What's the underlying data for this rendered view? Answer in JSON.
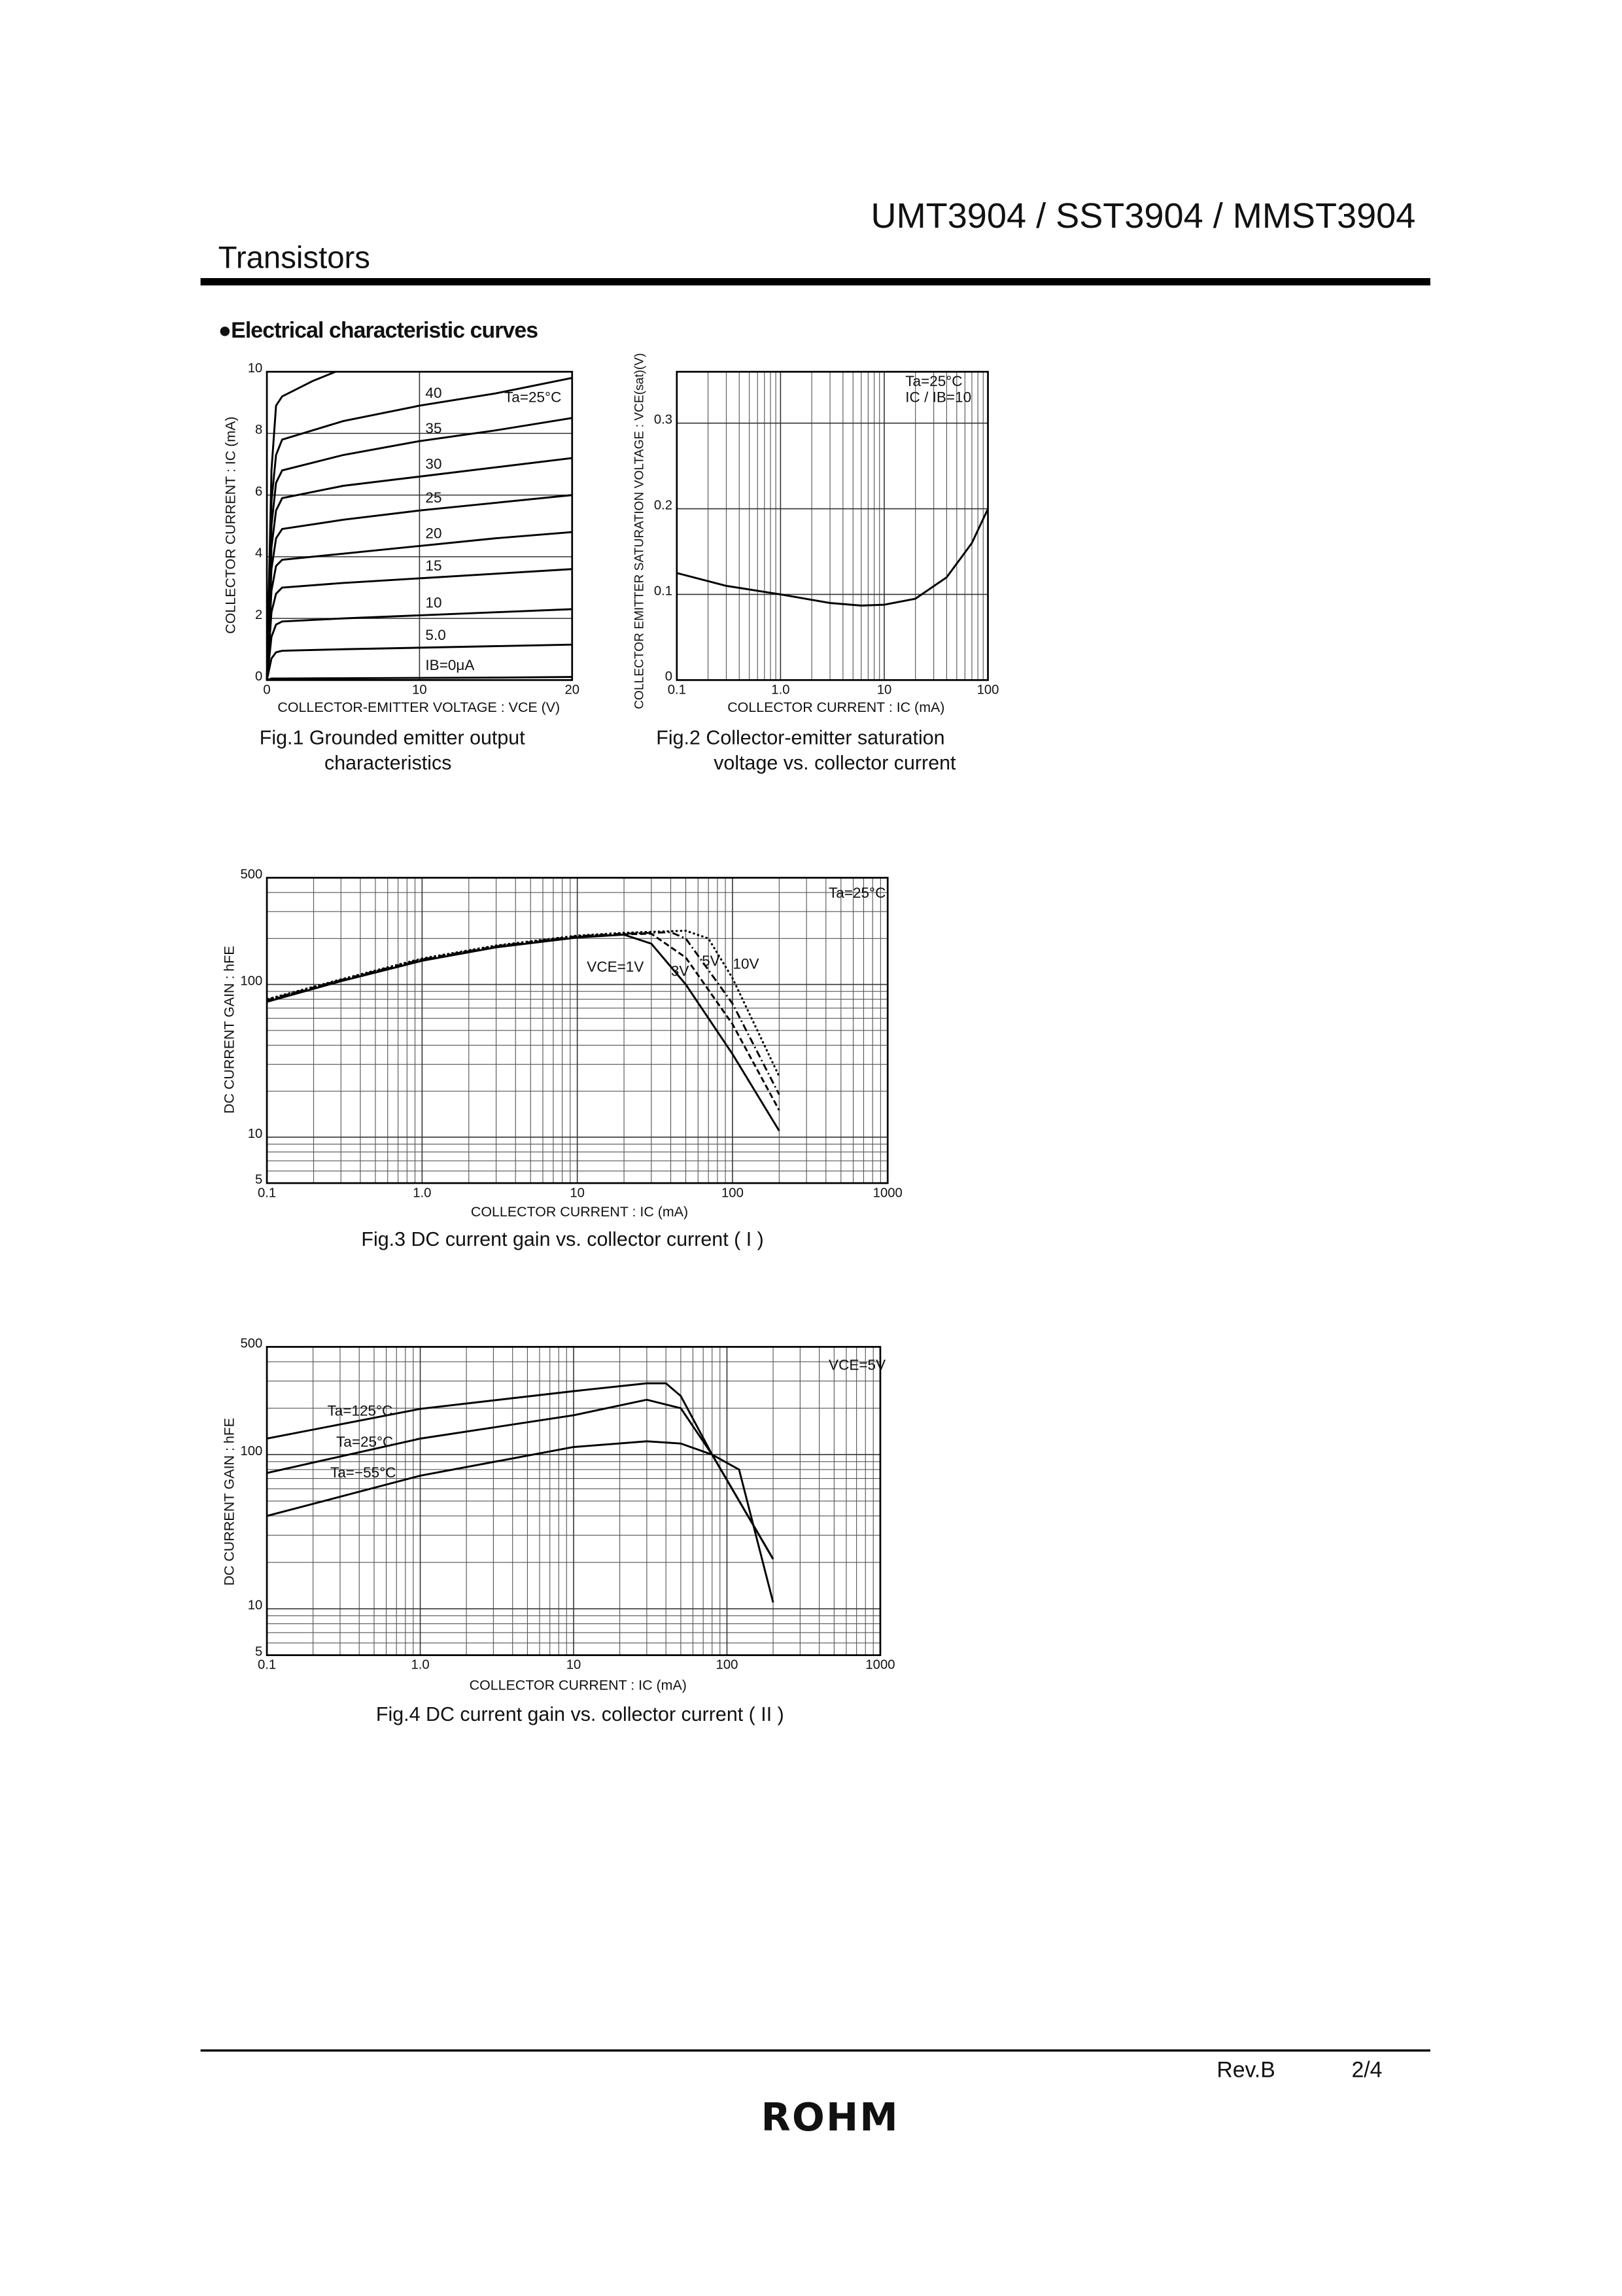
{
  "header": {
    "title": "UMT3904 / SST3904 / MMST3904",
    "category": "Transistors"
  },
  "section": "●Electrical characteristic curves",
  "chart_data": [
    {
      "type": "line",
      "xlabel": "COLLECTOR-EMITTER  VOLTAGE : VCE (V)",
      "ylabel": "COLLECTOR  CURRENT : IC (mA)",
      "annotations": [
        "Ta=25°C"
      ],
      "caption": [
        "Fig.1  Grounded emitter output",
        "characteristics"
      ],
      "xlim": [
        0,
        20
      ],
      "ylim": [
        0,
        10
      ],
      "xticks": [
        0,
        10,
        20
      ],
      "yticks": [
        0,
        2,
        4,
        6,
        8,
        10
      ],
      "grid": true,
      "series": [
        {
          "name": "IB=0μA",
          "color": "#000",
          "dash": "solid",
          "x": [
            0,
            0.3,
            0.6,
            1,
            5,
            10,
            15,
            20
          ],
          "values": [
            0,
            0.05,
            0.05,
            0.05,
            0.06,
            0.07,
            0.08,
            0.1
          ]
        },
        {
          "name": "5.0",
          "color": "#000",
          "dash": "solid",
          "x": [
            0,
            0.3,
            0.6,
            1,
            5,
            10,
            15,
            20
          ],
          "values": [
            0,
            0.7,
            0.9,
            0.95,
            1.0,
            1.05,
            1.1,
            1.15
          ]
        },
        {
          "name": "10",
          "color": "#000",
          "dash": "solid",
          "x": [
            0,
            0.3,
            0.6,
            1,
            5,
            10,
            15,
            20
          ],
          "values": [
            0,
            1.4,
            1.8,
            1.9,
            2.0,
            2.1,
            2.2,
            2.3
          ]
        },
        {
          "name": "15",
          "color": "#000",
          "dash": "solid",
          "x": [
            0,
            0.3,
            0.6,
            1,
            5,
            10,
            15,
            20
          ],
          "values": [
            0,
            2.2,
            2.8,
            3.0,
            3.15,
            3.3,
            3.45,
            3.6
          ]
        },
        {
          "name": "20",
          "color": "#000",
          "dash": "solid",
          "x": [
            0,
            0.3,
            0.6,
            1,
            5,
            10,
            15,
            20
          ],
          "values": [
            0,
            2.9,
            3.7,
            3.9,
            4.1,
            4.35,
            4.6,
            4.8
          ]
        },
        {
          "name": "25",
          "color": "#000",
          "dash": "solid",
          "x": [
            0,
            0.3,
            0.6,
            1,
            5,
            10,
            15,
            20
          ],
          "values": [
            0,
            3.6,
            4.6,
            4.9,
            5.2,
            5.5,
            5.75,
            6.0
          ]
        },
        {
          "name": "30",
          "color": "#000",
          "dash": "solid",
          "x": [
            0,
            0.3,
            0.6,
            1,
            5,
            10,
            15,
            20
          ],
          "values": [
            0,
            4.3,
            5.5,
            5.9,
            6.3,
            6.6,
            6.9,
            7.2
          ]
        },
        {
          "name": "35",
          "color": "#000",
          "dash": "solid",
          "x": [
            0,
            0.3,
            0.6,
            1,
            5,
            10,
            15,
            20
          ],
          "values": [
            0,
            5.0,
            6.4,
            6.8,
            7.3,
            7.75,
            8.1,
            8.5
          ]
        },
        {
          "name": "40",
          "color": "#000",
          "dash": "solid",
          "x": [
            0,
            0.3,
            0.6,
            1,
            5,
            10,
            15,
            20
          ],
          "values": [
            0,
            5.8,
            7.3,
            7.8,
            8.4,
            8.9,
            9.3,
            9.8
          ]
        },
        {
          "name": null,
          "color": "#000",
          "dash": "solid",
          "x": [
            0,
            0.3,
            0.6,
            1,
            3,
            4.5
          ],
          "values": [
            0,
            6.8,
            8.9,
            9.2,
            9.7,
            10
          ]
        }
      ]
    },
    {
      "type": "line",
      "xlabel": "COLLECTOR  CURRENT : IC (mA)",
      "ylabel": "COLLECTOR EMITTER SATURATION VOLTAGE : VCE(sat)(V)",
      "annotations": [
        "Ta=25°C",
        "IC / IB=10"
      ],
      "caption": [
        "Fig.2  Collector-emitter saturation",
        "voltage vs. collector current"
      ],
      "xlog": true,
      "xlim": [
        0.1,
        100
      ],
      "ylim": [
        0,
        0.36
      ],
      "xticks": [
        0.1,
        {
          "value": 1,
          "label": "1.0"
        },
        10,
        100
      ],
      "yticks": [
        0,
        0.1,
        0.2,
        0.3
      ],
      "grid": true,
      "xgrid": [
        0.2,
        0.3,
        0.4,
        0.5,
        0.6,
        0.7,
        0.8,
        0.9,
        2,
        3,
        4,
        5,
        6,
        7,
        8,
        9,
        20,
        30,
        40,
        50,
        60,
        70,
        80,
        90
      ],
      "series": [
        {
          "name": null,
          "color": "#000",
          "dash": "solid",
          "x": [
            0.1,
            0.3,
            1,
            3,
            6,
            10,
            20,
            40,
            70,
            100
          ],
          "values": [
            0.125,
            0.11,
            0.1,
            0.09,
            0.087,
            0.088,
            0.095,
            0.12,
            0.16,
            0.2
          ]
        }
      ]
    },
    {
      "type": "line",
      "xlabel": "COLLECTOR CURRENT : IC (mA)",
      "ylabel": "DC CURRENT GAIN : hFE",
      "annotations": [
        "Ta=25°C"
      ],
      "caption": [
        "Fig.3  DC current gain vs. collector current ( I )"
      ],
      "xlog": true,
      "ylog": true,
      "xlim": [
        0.1,
        1000
      ],
      "ylim": [
        5,
        500
      ],
      "xticks": [
        0.1,
        {
          "value": 1,
          "label": "1.0"
        },
        10,
        100,
        1000
      ],
      "yticks": [
        5,
        10,
        100,
        500
      ],
      "grid": true,
      "xgrid": [
        0.2,
        0.3,
        0.4,
        0.5,
        0.6,
        0.7,
        0.8,
        0.9,
        2,
        3,
        4,
        5,
        6,
        7,
        8,
        9,
        20,
        30,
        40,
        50,
        60,
        70,
        80,
        90,
        200,
        300,
        400,
        500,
        600,
        700,
        800,
        900
      ],
      "ygrid": [
        6,
        7,
        8,
        9,
        20,
        30,
        40,
        50,
        60,
        70,
        80,
        90,
        200,
        300,
        400
      ],
      "series": [
        {
          "name": "VCE=1V",
          "color": "#000",
          "dash": "solid",
          "x": [
            0.1,
            0.3,
            1,
            3,
            10,
            20,
            30,
            50,
            100,
            200
          ],
          "values": [
            77,
            105,
            143,
            175,
            203,
            212,
            185,
            100,
            35,
            11
          ]
        },
        {
          "name": "3V",
          "color": "#000",
          "dash": "dashed",
          "x": [
            0.1,
            0.3,
            1,
            3,
            10,
            20,
            30,
            50,
            100,
            200
          ],
          "values": [
            78,
            106,
            145,
            177,
            205,
            213,
            215,
            150,
            55,
            15
          ]
        },
        {
          "name": "5V",
          "color": "#000",
          "dash": "dashdot",
          "x": [
            0.1,
            0.3,
            1,
            3,
            10,
            20,
            40,
            50,
            100,
            200
          ],
          "values": [
            79,
            107,
            146,
            178,
            207,
            215,
            220,
            200,
            75,
            19
          ]
        },
        {
          "name": "10V",
          "color": "#000",
          "dash": "dotted",
          "x": [
            0.1,
            0.3,
            1,
            3,
            10,
            20,
            50,
            70,
            100,
            200
          ],
          "values": [
            80,
            108,
            148,
            180,
            209,
            218,
            225,
            200,
            110,
            25
          ]
        }
      ]
    },
    {
      "type": "line",
      "xlabel": "COLLECTOR  CURRENT : IC (mA)",
      "ylabel": "DC CURRENT GAIN : hFE",
      "annotations": [
        "VCE=5V"
      ],
      "caption": [
        "Fig.4  DC current gain vs. collector current ( II )"
      ],
      "xlog": true,
      "ylog": true,
      "xlim": [
        0.1,
        1000
      ],
      "ylim": [
        5,
        500
      ],
      "xticks": [
        0.1,
        {
          "value": 1,
          "label": "1.0"
        },
        10,
        100,
        1000
      ],
      "yticks": [
        5,
        10,
        100,
        500
      ],
      "grid": true,
      "xgrid": [
        0.2,
        0.3,
        0.4,
        0.5,
        0.6,
        0.7,
        0.8,
        0.9,
        2,
        3,
        4,
        5,
        6,
        7,
        8,
        9,
        20,
        30,
        40,
        50,
        60,
        70,
        80,
        90,
        200,
        300,
        400,
        500,
        600,
        700,
        800,
        900
      ],
      "ygrid": [
        6,
        7,
        8,
        9,
        20,
        30,
        40,
        50,
        60,
        70,
        80,
        90,
        200,
        300,
        400
      ],
      "series": [
        {
          "name": "Ta=125°C",
          "color": "#000",
          "dash": "solid",
          "x": [
            0.1,
            1,
            10,
            30,
            40,
            50,
            80,
            200
          ],
          "values": [
            127,
            198,
            258,
            290,
            290,
            240,
            100,
            21
          ]
        },
        {
          "name": "Ta=25°C",
          "color": "#000",
          "dash": "solid",
          "x": [
            0.1,
            1,
            10,
            30,
            50,
            80,
            200
          ],
          "values": [
            76,
            127,
            180,
            227,
            200,
            100,
            21
          ]
        },
        {
          "name": "Ta=−55°C",
          "color": "#000",
          "dash": "solid",
          "x": [
            0.1,
            1,
            10,
            30,
            50,
            80,
            120,
            200
          ],
          "values": [
            40,
            73,
            112,
            122,
            118,
            100,
            80,
            11
          ]
        }
      ]
    }
  ],
  "footer": {
    "revision": "Rev.B",
    "page": "2/4",
    "logo": "ROHM"
  }
}
